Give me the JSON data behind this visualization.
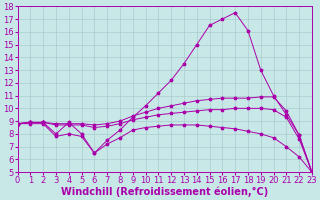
{
  "bg_color": "#c8e8e8",
  "grid_color": "#aacccc",
  "line_color": "#aa00aa",
  "xlim": [
    0,
    23
  ],
  "ylim": [
    5,
    18
  ],
  "xticks": [
    0,
    1,
    2,
    3,
    4,
    5,
    6,
    7,
    8,
    9,
    10,
    11,
    12,
    13,
    14,
    15,
    16,
    17,
    18,
    19,
    20,
    21,
    22,
    23
  ],
  "yticks": [
    5,
    6,
    7,
    8,
    9,
    10,
    11,
    12,
    13,
    14,
    15,
    16,
    17,
    18
  ],
  "xlabel": "Windchill (Refroidissement éolien,°C)",
  "x": [
    0,
    1,
    2,
    3,
    4,
    5,
    6,
    7,
    8,
    9,
    10,
    11,
    12,
    13,
    14,
    15,
    16,
    17,
    18,
    19,
    20,
    21,
    22,
    23
  ],
  "y_top": [
    8.8,
    8.9,
    8.9,
    8.0,
    8.9,
    8.0,
    6.5,
    7.5,
    8.3,
    9.3,
    10.2,
    11.2,
    12.2,
    13.5,
    15.0,
    16.5,
    17.0,
    17.5,
    16.1,
    13.0,
    11.0,
    9.5,
    7.9,
    5.0
  ],
  "y_mid_hi": [
    8.8,
    8.9,
    8.9,
    8.8,
    8.8,
    8.8,
    8.7,
    8.8,
    9.0,
    9.4,
    9.7,
    10.0,
    10.2,
    10.4,
    10.6,
    10.7,
    10.8,
    10.8,
    10.8,
    10.9,
    10.9,
    9.8,
    7.9,
    5.0
  ],
  "y_mid_lo": [
    8.8,
    8.9,
    8.9,
    8.7,
    8.7,
    8.7,
    8.5,
    8.6,
    8.8,
    9.1,
    9.3,
    9.5,
    9.6,
    9.7,
    9.8,
    9.9,
    9.9,
    10.0,
    10.0,
    10.0,
    9.9,
    9.3,
    7.6,
    5.0
  ],
  "y_bot": [
    8.8,
    8.8,
    8.8,
    7.8,
    8.0,
    7.8,
    6.5,
    7.2,
    7.7,
    8.3,
    8.5,
    8.6,
    8.7,
    8.7,
    8.7,
    8.6,
    8.5,
    8.4,
    8.2,
    8.0,
    7.7,
    7.0,
    6.2,
    5.0
  ],
  "xlabel_fontsize": 7,
  "tick_fontsize": 6
}
